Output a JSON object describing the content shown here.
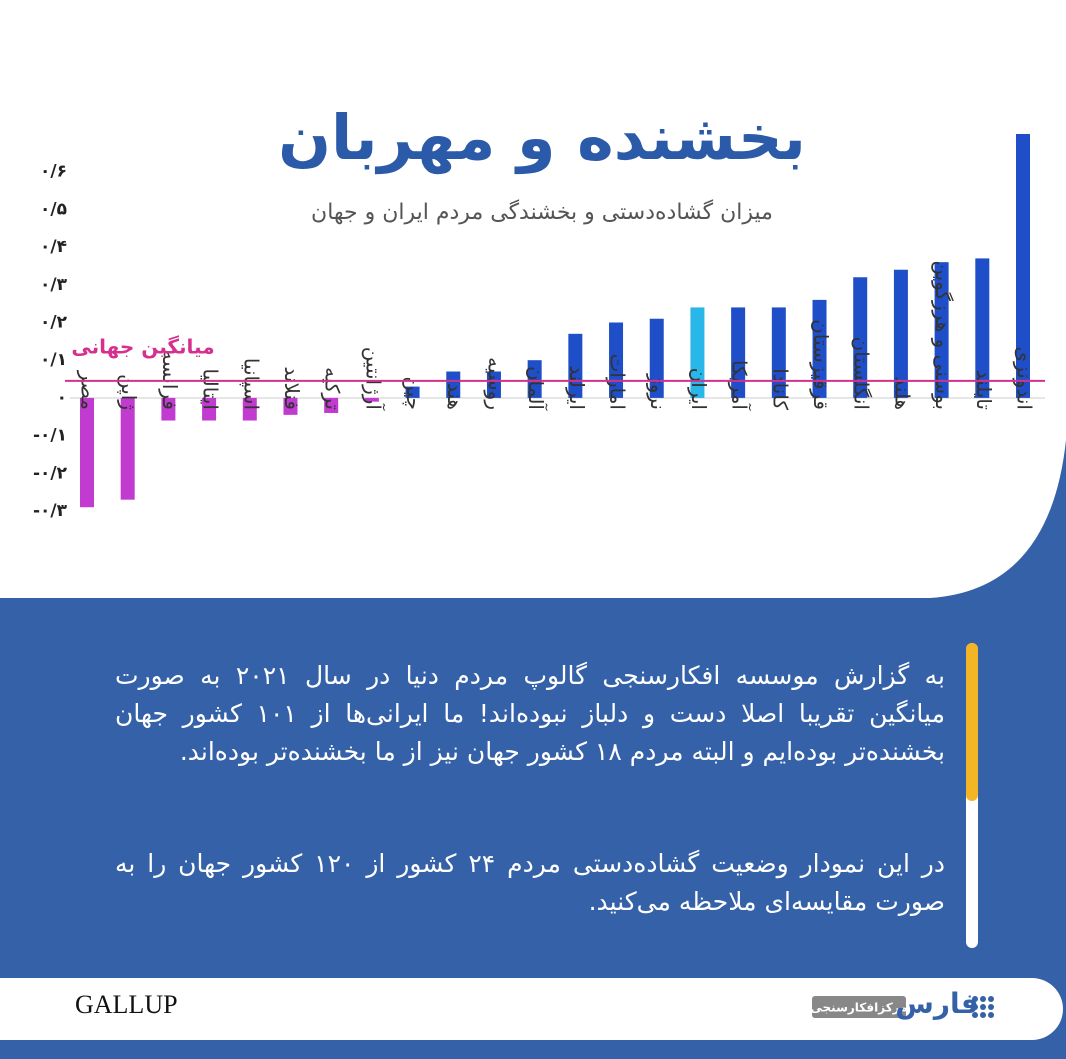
{
  "chart_data": {
    "type": "bar",
    "title": "بخشنده و مهربان",
    "subtitle": "میزان گشاده‌دستی و بخشندگی مردم ایران و جهان",
    "categories": [
      "مصر",
      "ژاپن",
      "فرانسه",
      "ایتالیا",
      "اسپانیا",
      "فنلاند",
      "ترکیه",
      "آرژانتین",
      "چین",
      "هند",
      "روسیه",
      "آلمان",
      "ایرلند",
      "امارات",
      "نروژ",
      "ایران",
      "آمریکا",
      "کانادا",
      "قرقیزستان",
      "انگلستان",
      "هلند",
      "بوسنی و هرزگوین",
      "تایلند",
      "اندونزی"
    ],
    "values": [
      -0.29,
      -0.27,
      -0.06,
      -0.06,
      -0.06,
      -0.045,
      -0.04,
      -0.01,
      0.03,
      0.07,
      0.07,
      0.1,
      0.17,
      0.2,
      0.21,
      0.24,
      0.24,
      0.24,
      0.26,
      0.32,
      0.34,
      0.36,
      0.37,
      0.7
    ],
    "colors": [
      "#c23bd0",
      "#c23bd0",
      "#c23bd0",
      "#c23bd0",
      "#c23bd0",
      "#c23bd0",
      "#c23bd0",
      "#c23bd0",
      "#1f4fc8",
      "#1f4fc8",
      "#1f4fc8",
      "#1f4fc8",
      "#1f4fc8",
      "#1f4fc8",
      "#1f4fc8",
      "#29b6e8",
      "#1f4fc8",
      "#1f4fc8",
      "#1f4fc8",
      "#1f4fc8",
      "#1f4fc8",
      "#1f4fc8",
      "#1f4fc8",
      "#1f4fc8"
    ],
    "ylim": [
      -0.3,
      0.7
    ],
    "yticks": [
      {
        "value": -0.3,
        "label": "-۰/۳"
      },
      {
        "value": -0.2,
        "label": "-۰/۲"
      },
      {
        "value": -0.1,
        "label": "-۰/۱"
      },
      {
        "value": 0,
        "label": "۰"
      },
      {
        "value": 0.1,
        "label": "۰/۱"
      },
      {
        "value": 0.2,
        "label": "۰/۲"
      },
      {
        "value": 0.3,
        "label": "۰/۳"
      },
      {
        "value": 0.4,
        "label": "۰/۴"
      },
      {
        "value": 0.5,
        "label": "۰/۵"
      },
      {
        "value": 0.6,
        "label": "۰/۶"
      }
    ],
    "average": {
      "label": "میانگین جهانی",
      "value": 0.045,
      "color": "#d6308f"
    }
  },
  "body_text": [
    "به گزارش موسسه افکارسنجی گالوپ  مردم دنیا در سال ۲۰۲۱ به صورت میانگین تقریبا اصلا دست و دلباز نبوده‌اند!  ما ایرانی‌ها از ۱۰۱ کشور جهان بخشنده‌تر بوده‌ایم و البته مردم ۱۸ کشور جهان نیز از ما بخشنده‌تر بوده‌اند.",
    "در این نمودار وضعیت گشاده‌دستی  مردم ۲۴ کشور از ۱۲۰ کشور جهان را به صورت مقایسه‌ای ملاحظه می‌کنید."
  ],
  "footer": {
    "source": "GALLUP",
    "brand": "فارس",
    "brand_sub": "مرکزافکارسنجی"
  }
}
